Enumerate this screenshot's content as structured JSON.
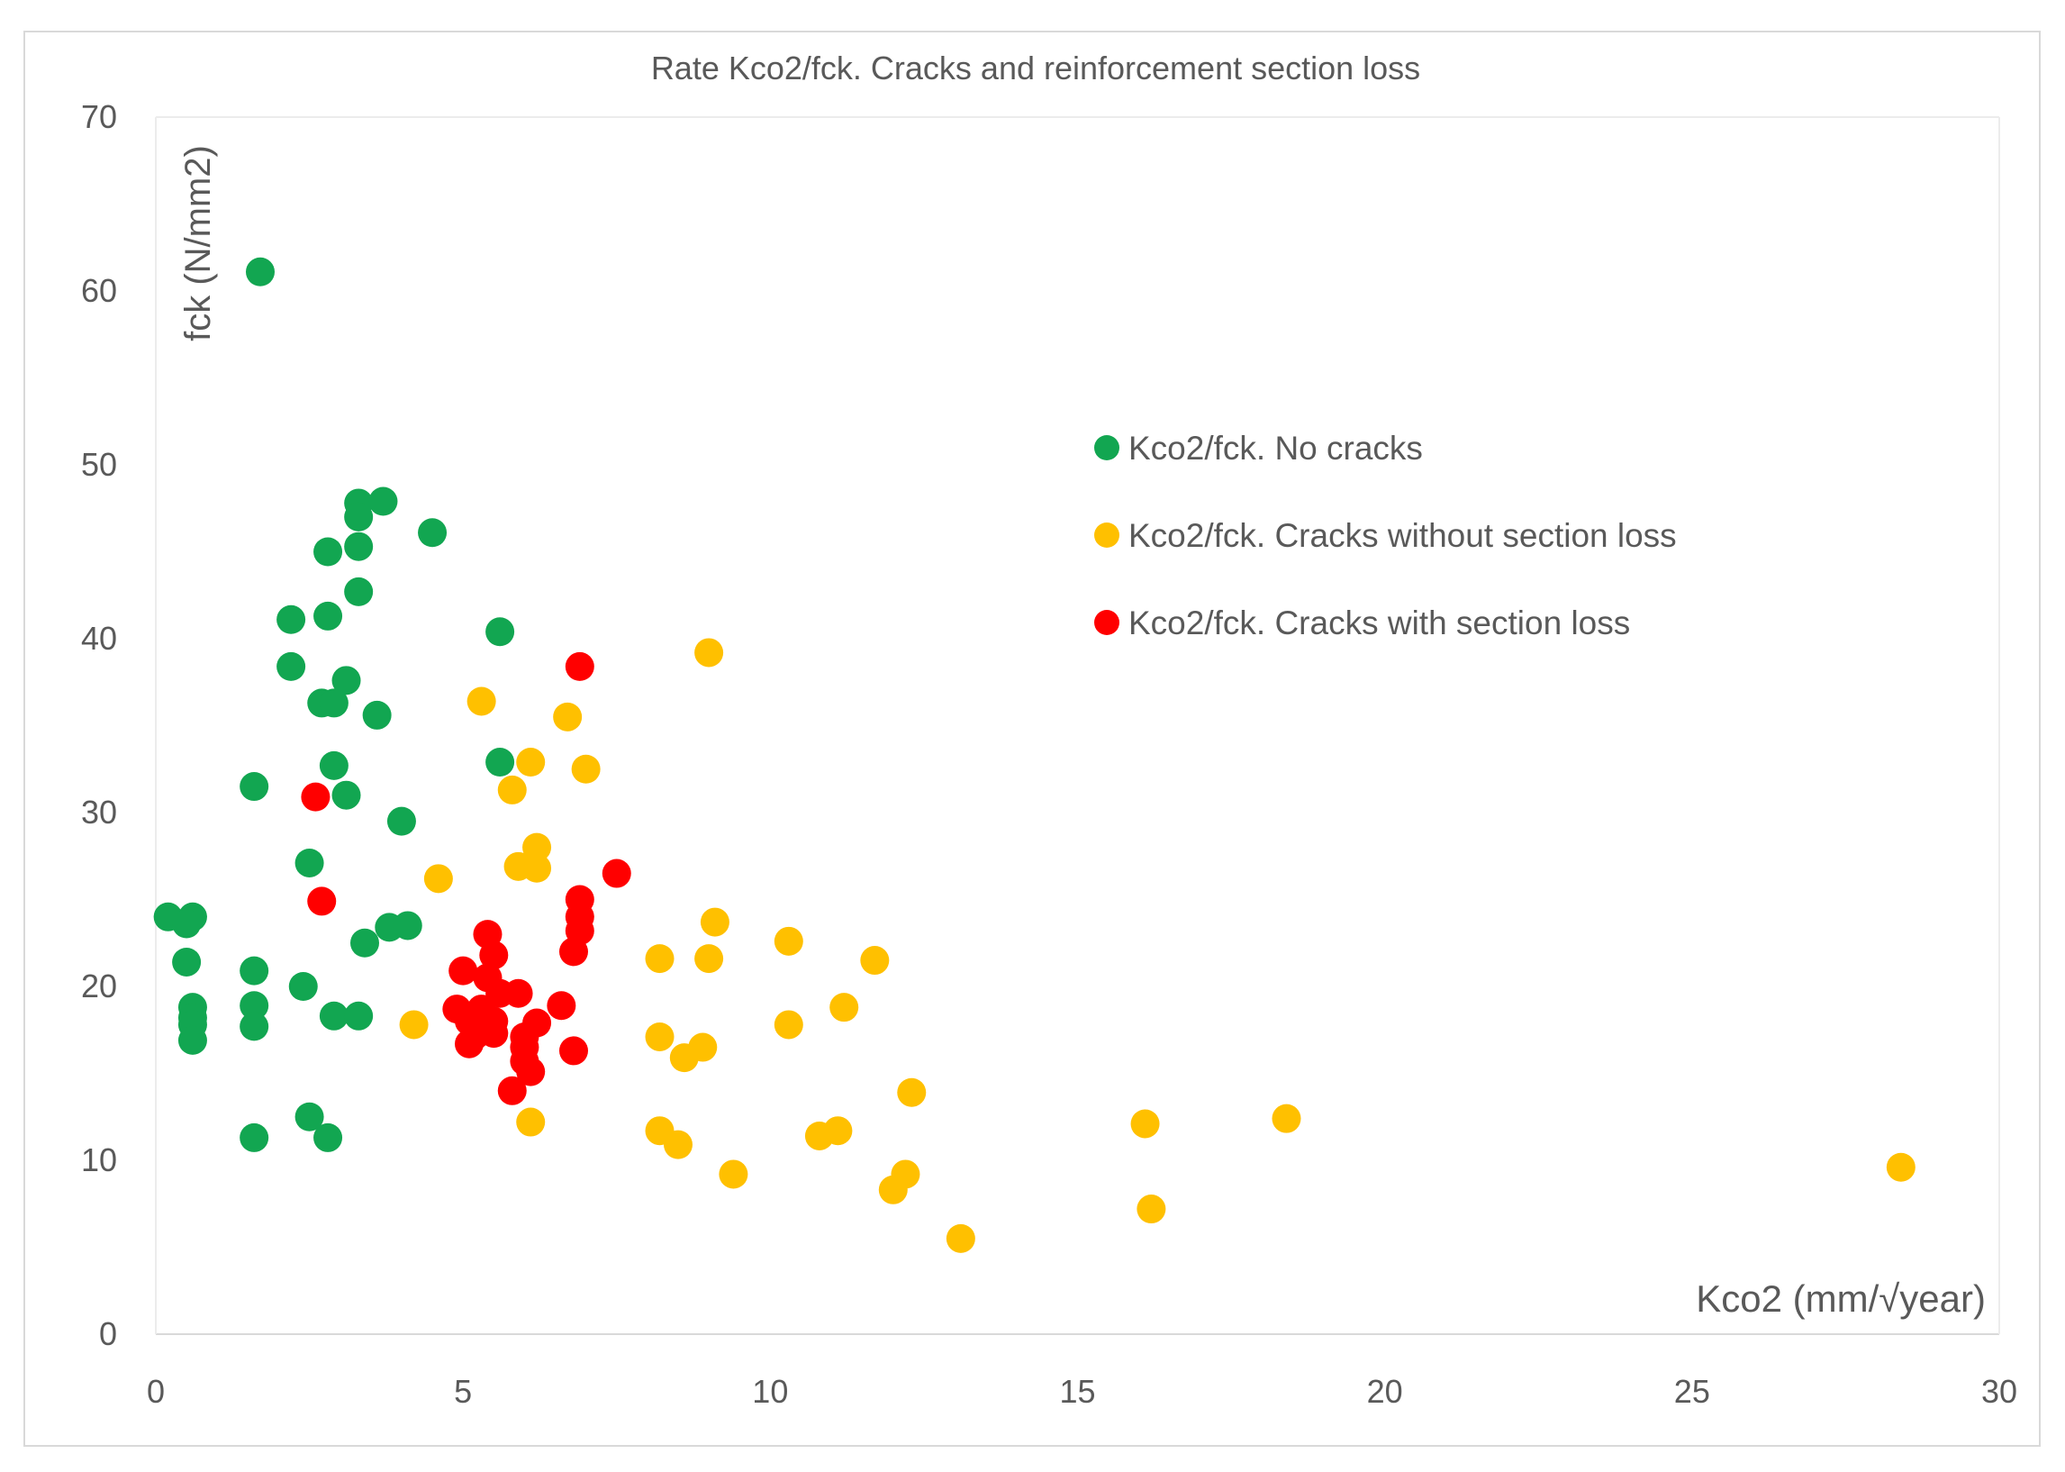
{
  "chart_data": {
    "type": "scatter",
    "title": "Rate Kco2/fck. Cracks and reinforcement section loss",
    "xlabel": "Kco2 (mm/√year)",
    "ylabel": "fck (N/mm2)",
    "xlim": [
      0,
      30
    ],
    "ylim": [
      0,
      70
    ],
    "x_ticks": [
      "0",
      "5",
      "10",
      "15",
      "20",
      "25",
      "30"
    ],
    "y_ticks": [
      "0",
      "10",
      "20",
      "30",
      "40",
      "50",
      "60",
      "70"
    ],
    "grid": false,
    "legend_position": "right-middle",
    "series": [
      {
        "name": "Kco2/fck. No cracks",
        "color": "#12a651",
        "points": [
          [
            1.7,
            61.1
          ],
          [
            3.3,
            47.8
          ],
          [
            3.7,
            47.9
          ],
          [
            3.3,
            47.0
          ],
          [
            4.5,
            46.1
          ],
          [
            2.8,
            45.0
          ],
          [
            3.3,
            45.3
          ],
          [
            3.3,
            42.7
          ],
          [
            2.2,
            41.1
          ],
          [
            2.8,
            41.3
          ],
          [
            5.6,
            40.4
          ],
          [
            2.2,
            38.4
          ],
          [
            3.1,
            37.6
          ],
          [
            2.7,
            36.3
          ],
          [
            2.9,
            36.3
          ],
          [
            3.6,
            35.6
          ],
          [
            5.6,
            32.9
          ],
          [
            2.9,
            32.7
          ],
          [
            1.6,
            31.5
          ],
          [
            3.1,
            31.0
          ],
          [
            4.0,
            29.5
          ],
          [
            2.5,
            27.1
          ],
          [
            0.2,
            24.0
          ],
          [
            0.6,
            24.0
          ],
          [
            0.5,
            23.6
          ],
          [
            3.8,
            23.4
          ],
          [
            4.1,
            23.5
          ],
          [
            3.4,
            22.5
          ],
          [
            0.5,
            21.4
          ],
          [
            1.6,
            20.9
          ],
          [
            2.4,
            20.0
          ],
          [
            0.6,
            18.8
          ],
          [
            1.6,
            18.9
          ],
          [
            0.6,
            18.2
          ],
          [
            2.9,
            18.3
          ],
          [
            3.3,
            18.3
          ],
          [
            0.6,
            17.8
          ],
          [
            1.6,
            17.7
          ],
          [
            0.6,
            16.9
          ],
          [
            2.5,
            12.5
          ],
          [
            1.6,
            11.3
          ],
          [
            2.8,
            11.3
          ]
        ]
      },
      {
        "name": "Kco2/fck. Cracks without section loss",
        "color": "#ffc000",
        "points": [
          [
            9.0,
            39.2
          ],
          [
            5.3,
            36.4
          ],
          [
            6.7,
            35.5
          ],
          [
            6.1,
            32.9
          ],
          [
            7.0,
            32.5
          ],
          [
            5.8,
            31.3
          ],
          [
            6.2,
            28.0
          ],
          [
            5.9,
            26.9
          ],
          [
            6.2,
            26.8
          ],
          [
            4.6,
            26.2
          ],
          [
            9.1,
            23.7
          ],
          [
            10.3,
            22.6
          ],
          [
            8.2,
            21.6
          ],
          [
            9.0,
            21.6
          ],
          [
            11.7,
            21.5
          ],
          [
            11.2,
            18.8
          ],
          [
            4.2,
            17.8
          ],
          [
            10.3,
            17.8
          ],
          [
            8.2,
            17.1
          ],
          [
            8.9,
            16.5
          ],
          [
            8.6,
            15.9
          ],
          [
            12.3,
            13.9
          ],
          [
            6.1,
            12.2
          ],
          [
            16.1,
            12.1
          ],
          [
            18.4,
            12.4
          ],
          [
            8.2,
            11.7
          ],
          [
            10.8,
            11.4
          ],
          [
            11.1,
            11.7
          ],
          [
            8.5,
            10.9
          ],
          [
            28.4,
            9.6
          ],
          [
            9.4,
            9.2
          ],
          [
            12.2,
            9.2
          ],
          [
            12.0,
            8.3
          ],
          [
            16.2,
            7.2
          ],
          [
            13.1,
            5.5
          ]
        ]
      },
      {
        "name": "Kco2/fck. Cracks with section loss",
        "color": "#ff0000",
        "points": [
          [
            6.9,
            38.4
          ],
          [
            2.6,
            30.9
          ],
          [
            7.5,
            26.5
          ],
          [
            2.7,
            24.9
          ],
          [
            6.9,
            25.0
          ],
          [
            6.9,
            24.0
          ],
          [
            6.9,
            23.2
          ],
          [
            5.4,
            23.0
          ],
          [
            5.5,
            21.8
          ],
          [
            6.8,
            22.0
          ],
          [
            5.0,
            20.9
          ],
          [
            5.4,
            20.5
          ],
          [
            5.6,
            19.6
          ],
          [
            5.9,
            19.6
          ],
          [
            4.9,
            18.7
          ],
          [
            5.3,
            18.7
          ],
          [
            6.6,
            18.9
          ],
          [
            5.1,
            18.0
          ],
          [
            5.5,
            18.0
          ],
          [
            6.2,
            17.9
          ],
          [
            5.2,
            17.2
          ],
          [
            5.5,
            17.3
          ],
          [
            6.0,
            17.1
          ],
          [
            5.1,
            16.7
          ],
          [
            6.0,
            16.5
          ],
          [
            6.8,
            16.3
          ],
          [
            6.0,
            15.7
          ],
          [
            6.1,
            15.1
          ],
          [
            5.8,
            14.0
          ]
        ]
      }
    ]
  }
}
